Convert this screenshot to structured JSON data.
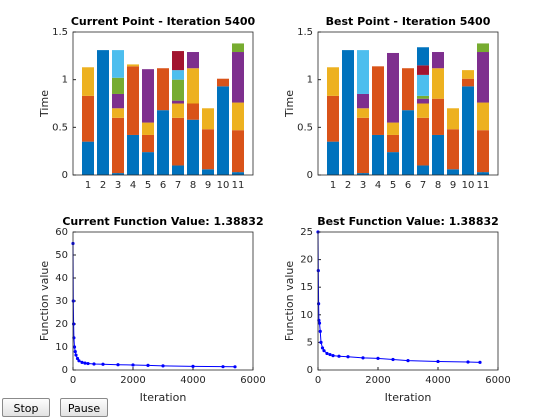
{
  "chart_data": [
    {
      "type": "bar",
      "stacked": true,
      "title": "Current Point - Iteration 5400",
      "ylabel": "Time",
      "categories": [
        "1",
        "2",
        "3",
        "4",
        "5",
        "6",
        "7",
        "8",
        "9",
        "10",
        "11"
      ],
      "ylim": [
        0,
        1.5
      ],
      "yticks": [
        0,
        0.5,
        1,
        1.5
      ],
      "series": [
        {
          "color": "#0072BD",
          "values": [
            0.35,
            1.31,
            0.02,
            0.42,
            0.24,
            0.68,
            0.1,
            0.58,
            0.06,
            0.93,
            0.03
          ]
        },
        {
          "color": "#D95319",
          "values": [
            0.48,
            0,
            0.58,
            0.72,
            0.18,
            0.44,
            0.5,
            0.17,
            0.42,
            0.08,
            0.44
          ]
        },
        {
          "color": "#EDB120",
          "values": [
            0.3,
            0,
            0.1,
            0.02,
            0.13,
            0,
            0.15,
            0.37,
            0.22,
            0,
            0.29
          ]
        },
        {
          "color": "#7E2F8E",
          "values": [
            0,
            0,
            0.15,
            0,
            0.56,
            0,
            0.03,
            0.17,
            0,
            0,
            0.53
          ]
        },
        {
          "color": "#77AC30",
          "values": [
            0,
            0,
            0.17,
            0,
            0,
            0,
            0.22,
            0,
            0,
            0,
            0.09
          ]
        },
        {
          "color": "#4DBEEE",
          "values": [
            0,
            0,
            0.29,
            0,
            0,
            0,
            0.1,
            0,
            0,
            0,
            0
          ]
        },
        {
          "color": "#A2142F",
          "values": [
            0,
            0,
            0,
            0,
            0,
            0,
            0.2,
            0,
            0,
            0,
            0
          ]
        }
      ]
    },
    {
      "type": "bar",
      "stacked": true,
      "title": "Best Point - Iteration 5400",
      "ylabel": "Time",
      "categories": [
        "1",
        "2",
        "3",
        "4",
        "5",
        "6",
        "7",
        "8",
        "9",
        "10",
        "11"
      ],
      "ylim": [
        0,
        1.5
      ],
      "yticks": [
        0,
        0.5,
        1,
        1.5
      ],
      "series": [
        {
          "color": "#0072BD",
          "values": [
            0.35,
            1.31,
            0.02,
            0.42,
            0.24,
            0.68,
            0.1,
            0.42,
            0.06,
            0.93,
            0.03
          ]
        },
        {
          "color": "#D95319",
          "values": [
            0.48,
            0,
            0.58,
            0.72,
            0.18,
            0.44,
            0.5,
            0.38,
            0.42,
            0.08,
            0.44
          ]
        },
        {
          "color": "#EDB120",
          "values": [
            0.3,
            0,
            0.1,
            0,
            0.13,
            0,
            0.15,
            0.32,
            0.22,
            0.09,
            0.29
          ]
        },
        {
          "color": "#7E2F8E",
          "values": [
            0,
            0,
            0.15,
            0,
            0.73,
            0,
            0.05,
            0.17,
            0,
            0,
            0.53
          ]
        },
        {
          "color": "#77AC30",
          "values": [
            0,
            0,
            0,
            0,
            0,
            0,
            0.03,
            0,
            0,
            0,
            0.09
          ]
        },
        {
          "color": "#4DBEEE",
          "values": [
            0,
            0,
            0.46,
            0,
            0,
            0,
            0.22,
            0,
            0,
            0,
            0
          ]
        },
        {
          "color": "#A2142F",
          "values": [
            0,
            0,
            0,
            0,
            0,
            0,
            0.1,
            0,
            0,
            0,
            0
          ]
        },
        {
          "color": "#0072BD",
          "values": [
            0,
            0,
            0,
            0,
            0,
            0,
            0.19,
            0,
            0,
            0,
            0
          ]
        }
      ]
    },
    {
      "type": "line",
      "marker": true,
      "title": "Current Function Value: 1.38832",
      "xlabel": "Iteration",
      "ylabel": "Function value",
      "xlim": [
        0,
        6000
      ],
      "xticks": [
        0,
        2000,
        4000,
        6000
      ],
      "ylim": [
        0,
        60
      ],
      "yticks": [
        0,
        10,
        20,
        30,
        40,
        50,
        60
      ],
      "x": [
        0,
        10,
        20,
        30,
        50,
        75,
        100,
        150,
        200,
        300,
        400,
        500,
        700,
        1000,
        1500,
        2000,
        2500,
        3000,
        4000,
        5000,
        5400
      ],
      "series": [
        {
          "color": "#0000ff",
          "values": [
            55,
            30,
            20,
            14,
            10,
            8,
            6.5,
            5,
            4,
            3.3,
            3,
            2.8,
            2.6,
            2.5,
            2.3,
            2.2,
            2.0,
            1.8,
            1.6,
            1.45,
            1.39
          ]
        }
      ]
    },
    {
      "type": "line",
      "marker": true,
      "title": "Best Function Value: 1.38832",
      "xlabel": "Iteration",
      "ylabel": "Function value",
      "xlim": [
        0,
        6000
      ],
      "xticks": [
        0,
        2000,
        4000,
        6000
      ],
      "ylim": [
        0,
        25
      ],
      "yticks": [
        0,
        5,
        10,
        15,
        20,
        25
      ],
      "x": [
        0,
        10,
        20,
        30,
        50,
        75,
        100,
        150,
        200,
        300,
        400,
        500,
        700,
        1000,
        1500,
        2000,
        2500,
        3000,
        4000,
        5000,
        5400
      ],
      "series": [
        {
          "color": "#0000ff",
          "values": [
            25,
            18,
            12,
            9,
            8.5,
            7,
            5,
            4,
            3.5,
            3,
            2.8,
            2.6,
            2.5,
            2.4,
            2.2,
            2.1,
            1.9,
            1.7,
            1.55,
            1.45,
            1.39
          ]
        }
      ]
    }
  ],
  "buttons": [
    "Stop",
    "Pause"
  ]
}
